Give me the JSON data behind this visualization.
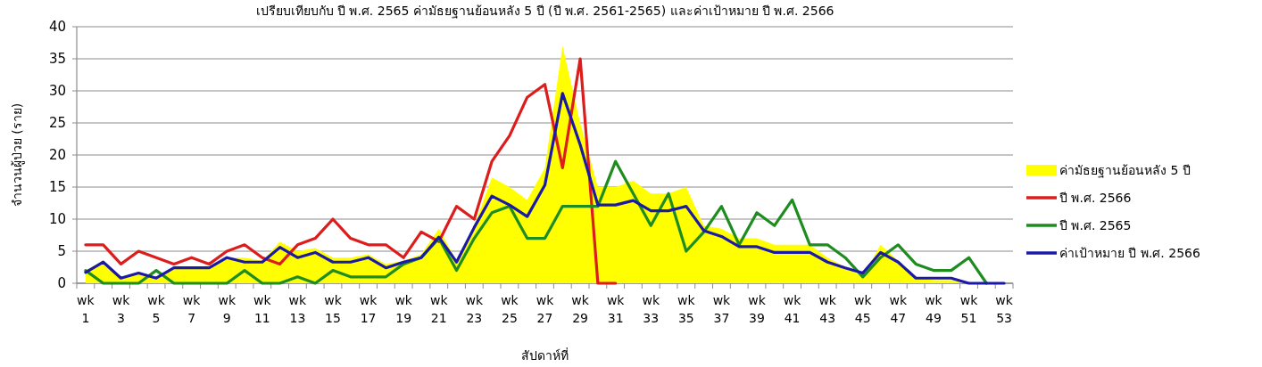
{
  "chart_data": {
    "type": "line",
    "title": "เปรียบเทียบกับ ปี พ.ศ. 2565 ค่ามัธยฐานย้อนหลัง 5 ปี (ปี พ.ศ. 2561-2565) และค่าเป้าหมาย ปี พ.ศ. 2566",
    "xlabel": "สัปดาห์ที่",
    "ylabel": "จำนวนผู้ป่วย (ราย)",
    "categories": [
      "wk 1",
      null,
      "wk 3",
      null,
      "wk 5",
      null,
      "wk 7",
      null,
      "wk 9",
      null,
      "wk 11",
      null,
      "wk 13",
      null,
      "wk 15",
      null,
      "wk 17",
      null,
      "wk 19",
      null,
      "wk 21",
      null,
      "wk 23",
      null,
      "wk 25",
      null,
      "wk 27",
      null,
      "wk 29",
      null,
      "wk 31",
      null,
      "wk 33",
      null,
      "wk 35",
      null,
      "wk 37",
      null,
      "wk 39",
      null,
      "wk 41",
      null,
      "wk 43",
      null,
      "wk 45",
      null,
      "wk 47",
      null,
      "wk 49",
      null,
      "wk 51",
      null,
      "wk 53"
    ],
    "series": [
      {
        "name": "ค่ามัธยฐานย้อนหลัง 5 ปี",
        "type": "area",
        "color": "#ffff00",
        "values": [
          2,
          3.5,
          1,
          1.5,
          1,
          2.5,
          2.5,
          2.5,
          4,
          4,
          3.5,
          6.5,
          5,
          5.5,
          4,
          4,
          4.5,
          3,
          3.5,
          4.5,
          8.5,
          3.5,
          9,
          16.5,
          15,
          13,
          18,
          37,
          25,
          15,
          15,
          16,
          14,
          14,
          15,
          9,
          8.5,
          7,
          7,
          6,
          6,
          6,
          4,
          2.5,
          1,
          6,
          3.5,
          1,
          0.5,
          0.5,
          0,
          0,
          0
        ]
      },
      {
        "name": "ปี พ.ศ. 2566",
        "type": "line",
        "color": "#dd1c1c",
        "values": [
          6,
          6,
          3,
          5,
          4,
          3,
          4,
          3,
          5,
          6,
          4,
          3,
          6,
          7,
          10,
          7,
          6,
          6,
          4,
          8,
          6.5,
          12,
          10,
          19,
          23,
          29,
          31,
          18,
          35,
          0,
          0,
          null,
          null,
          null,
          null,
          null,
          null,
          null,
          null,
          null,
          null,
          null,
          null,
          null,
          null,
          null,
          null,
          null,
          null,
          null,
          null,
          null,
          null
        ]
      },
      {
        "name": "ปี พ.ศ. 2565",
        "type": "line",
        "color": "#1e8c1e",
        "values": [
          2,
          0,
          0,
          0,
          2,
          0,
          0,
          0,
          0,
          2,
          0,
          0,
          1,
          0,
          2,
          1,
          1,
          1,
          3,
          4,
          7,
          2,
          7,
          11,
          12,
          7,
          7,
          12,
          12,
          12,
          19,
          14,
          9,
          14,
          5,
          8,
          12,
          6,
          11,
          9,
          13,
          6,
          6,
          4,
          1,
          4,
          6,
          3,
          2,
          2,
          4,
          0,
          null
        ]
      },
      {
        "name": "ค่าเป้าหมาย ปี พ.ศ. 2566",
        "type": "line",
        "color": "#1a1aa6",
        "values": [
          1.7,
          3.3,
          0.8,
          1.6,
          0.8,
          2.4,
          2.4,
          2.4,
          4,
          3.3,
          3.3,
          5.6,
          4,
          4.8,
          3.3,
          3.3,
          4,
          2.4,
          3.3,
          4,
          7.2,
          3.3,
          8.7,
          13.6,
          12.2,
          10.4,
          15.3,
          29.6,
          21.6,
          12.2,
          12.2,
          12.9,
          11.3,
          11.3,
          12,
          8.2,
          7.3,
          5.7,
          5.7,
          4.8,
          4.8,
          4.8,
          3.3,
          2.4,
          1.6,
          4.8,
          3.3,
          0.8,
          0.8,
          0.8,
          0,
          0,
          0
        ]
      }
    ],
    "ylim": [
      0,
      40
    ],
    "yticks": [
      0,
      5,
      10,
      15,
      20,
      25,
      30,
      35,
      40
    ],
    "grid": "y",
    "legend": "right",
    "marker": "none",
    "line_style": "solid"
  }
}
